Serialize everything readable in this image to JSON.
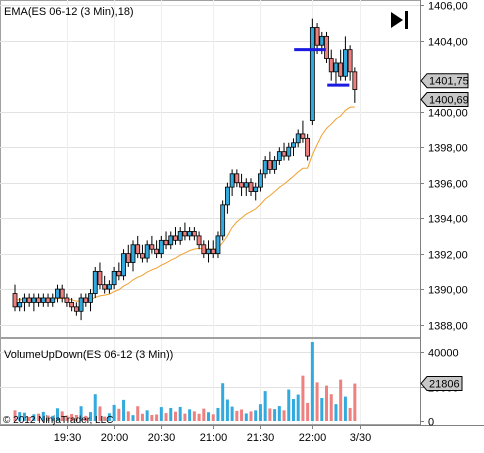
{
  "chart_data": [
    {
      "type": "candlestick",
      "title": "EMA(ES 06-12 (3 Min),18)",
      "ylim": [
        1387.3,
        1406.3
      ],
      "ticks": [
        {
          "value": 1406,
          "label": "1406,00"
        },
        {
          "value": 1404,
          "label": "1404,00"
        },
        {
          "value": 1400,
          "label": "1400,00"
        },
        {
          "value": 1398,
          "label": "1398,00"
        },
        {
          "value": 1396,
          "label": "1396,00"
        },
        {
          "value": 1394,
          "label": "1394,00"
        },
        {
          "value": 1392,
          "label": "1392,00"
        },
        {
          "value": 1390,
          "label": "1390,00"
        },
        {
          "value": 1388,
          "label": "1388,00"
        }
      ],
      "price_markers": [
        {
          "value": 1401.75,
          "label": "1401,75"
        },
        {
          "value": 1400.69,
          "label": "1400,69"
        }
      ],
      "up_color": "#33aadd",
      "down_color": "#ee8080",
      "ema_color": "#f0a030",
      "candles": [
        [
          1389.75,
          1390.25,
          1388.75,
          1389.0
        ],
        [
          1389.0,
          1389.5,
          1388.75,
          1389.25
        ],
        [
          1389.25,
          1389.75,
          1388.75,
          1389.5
        ],
        [
          1389.5,
          1389.75,
          1389.0,
          1389.25
        ],
        [
          1389.25,
          1389.75,
          1388.75,
          1389.5
        ],
        [
          1389.5,
          1389.75,
          1389.0,
          1389.25
        ],
        [
          1389.25,
          1389.75,
          1389.0,
          1389.5
        ],
        [
          1389.5,
          1389.75,
          1389.0,
          1389.25
        ],
        [
          1389.25,
          1389.75,
          1389.0,
          1389.5
        ],
        [
          1389.5,
          1390.25,
          1389.25,
          1390.0
        ],
        [
          1390.0,
          1390.25,
          1389.25,
          1389.5
        ],
        [
          1389.5,
          1389.75,
          1389.0,
          1389.25
        ],
        [
          1389.25,
          1389.5,
          1388.75,
          1389.0
        ],
        [
          1389.0,
          1389.25,
          1388.5,
          1388.75
        ],
        [
          1388.75,
          1389.75,
          1388.25,
          1389.5
        ],
        [
          1389.5,
          1389.75,
          1389.0,
          1389.25
        ],
        [
          1389.25,
          1390.0,
          1388.75,
          1389.75
        ],
        [
          1389.75,
          1391.25,
          1389.5,
          1391.0
        ],
        [
          1391.0,
          1391.5,
          1390.0,
          1390.25
        ],
        [
          1390.25,
          1390.75,
          1389.75,
          1390.0
        ],
        [
          1390.0,
          1390.5,
          1389.75,
          1390.25
        ],
        [
          1390.25,
          1391.25,
          1390.0,
          1391.0
        ],
        [
          1391.0,
          1391.5,
          1390.5,
          1390.75
        ],
        [
          1390.75,
          1392.25,
          1390.5,
          1392.0
        ],
        [
          1392.0,
          1392.5,
          1391.25,
          1391.5
        ],
        [
          1391.5,
          1392.75,
          1391.0,
          1392.5
        ],
        [
          1392.5,
          1393.0,
          1391.75,
          1392.0
        ],
        [
          1392.0,
          1392.5,
          1391.5,
          1391.75
        ],
        [
          1391.75,
          1392.75,
          1391.5,
          1392.5
        ],
        [
          1392.5,
          1393.0,
          1392.0,
          1392.25
        ],
        [
          1392.25,
          1392.75,
          1391.75,
          1392.0
        ],
        [
          1392.0,
          1393.0,
          1391.75,
          1392.75
        ],
        [
          1392.75,
          1393.25,
          1392.25,
          1392.5
        ],
        [
          1392.5,
          1393.25,
          1392.25,
          1393.0
        ],
        [
          1393.0,
          1393.5,
          1392.5,
          1392.75
        ],
        [
          1392.75,
          1393.5,
          1392.5,
          1393.25
        ],
        [
          1393.25,
          1393.75,
          1392.75,
          1393.0
        ],
        [
          1393.0,
          1393.5,
          1392.75,
          1393.25
        ],
        [
          1393.25,
          1393.5,
          1392.75,
          1393.0
        ],
        [
          1393.0,
          1393.25,
          1392.25,
          1392.5
        ],
        [
          1392.5,
          1392.75,
          1391.75,
          1392.0
        ],
        [
          1392.0,
          1392.75,
          1391.5,
          1392.25
        ],
        [
          1392.25,
          1392.75,
          1391.75,
          1392.0
        ],
        [
          1392.0,
          1393.25,
          1391.75,
          1393.0
        ],
        [
          1393.0,
          1395.0,
          1392.75,
          1394.75
        ],
        [
          1394.75,
          1396.0,
          1394.25,
          1395.75
        ],
        [
          1395.75,
          1396.75,
          1395.25,
          1396.5
        ],
        [
          1396.5,
          1396.75,
          1395.75,
          1396.0
        ],
        [
          1396.0,
          1396.5,
          1395.25,
          1395.75
        ],
        [
          1395.75,
          1396.25,
          1395.25,
          1396.0
        ],
        [
          1396.0,
          1396.25,
          1395.25,
          1395.5
        ],
        [
          1395.5,
          1396.0,
          1395.0,
          1395.75
        ],
        [
          1395.75,
          1396.75,
          1395.5,
          1396.5
        ],
        [
          1396.5,
          1397.5,
          1396.25,
          1397.25
        ],
        [
          1397.25,
          1397.75,
          1396.5,
          1396.75
        ],
        [
          1396.75,
          1397.5,
          1396.5,
          1397.25
        ],
        [
          1397.25,
          1398.0,
          1397.0,
          1397.75
        ],
        [
          1397.75,
          1398.25,
          1397.25,
          1397.5
        ],
        [
          1397.5,
          1398.25,
          1397.25,
          1398.0
        ],
        [
          1398.0,
          1398.5,
          1397.5,
          1398.25
        ],
        [
          1398.25,
          1399.0,
          1398.0,
          1398.75
        ],
        [
          1398.75,
          1399.5,
          1398.25,
          1398.5
        ],
        [
          1398.5,
          1398.75,
          1397.25,
          1397.5
        ],
        [
          1399.5,
          1405.25,
          1399.25,
          1404.75
        ],
        [
          1404.75,
          1405.0,
          1403.25,
          1403.75
        ],
        [
          1403.75,
          1404.5,
          1403.25,
          1404.25
        ],
        [
          1404.25,
          1404.5,
          1402.75,
          1403.0
        ],
        [
          1403.0,
          1403.5,
          1401.75,
          1402.25
        ],
        [
          1402.25,
          1403.0,
          1401.5,
          1402.75
        ],
        [
          1402.75,
          1403.5,
          1401.75,
          1402.0
        ],
        [
          1402.0,
          1404.25,
          1401.75,
          1403.5
        ],
        [
          1403.5,
          1403.75,
          1401.75,
          1402.25
        ],
        [
          1402.25,
          1402.5,
          1400.5,
          1401.25
        ]
      ],
      "ema": [
        1389.4,
        1389.4,
        1389.4,
        1389.4,
        1389.4,
        1389.4,
        1389.4,
        1389.4,
        1389.41,
        1389.47,
        1389.47,
        1389.45,
        1389.4,
        1389.32,
        1389.34,
        1389.33,
        1389.37,
        1389.53,
        1389.62,
        1389.66,
        1389.72,
        1389.86,
        1389.96,
        1390.17,
        1390.31,
        1390.52,
        1390.67,
        1390.78,
        1390.96,
        1391.09,
        1391.19,
        1391.35,
        1391.47,
        1391.63,
        1391.75,
        1391.92,
        1392.04,
        1392.17,
        1392.26,
        1392.29,
        1392.26,
        1392.26,
        1392.24,
        1392.33,
        1392.63,
        1393.0,
        1393.48,
        1393.79,
        1394.01,
        1394.23,
        1394.37,
        1394.52,
        1394.77,
        1395.08,
        1395.27,
        1395.5,
        1395.73,
        1395.92,
        1396.14,
        1396.36,
        1396.61,
        1396.81,
        1396.82,
        1397.58,
        1398.15,
        1398.69,
        1399.06,
        1399.3,
        1399.59,
        1399.76,
        1400.08,
        1400.25,
        1400.27
      ],
      "annotations": [
        {
          "kind": "line",
          "from": 60,
          "to": 65,
          "value": 1403.5,
          "color": "#1a1ae0"
        },
        {
          "kind": "line",
          "from": 67,
          "to": 70,
          "value": 1401.5,
          "color": "#1a1ae0"
        },
        {
          "kind": "play-marker",
          "color": "#000000"
        }
      ]
    },
    {
      "type": "bar",
      "title": "VolumeUpDown(ES 06-12 (3 Min))",
      "ylim": [
        0,
        46000
      ],
      "ticks": [
        {
          "value": 40000,
          "label": "40000"
        },
        {
          "value": 20000,
          "label": "20000"
        },
        {
          "value": 0,
          "label": "0"
        }
      ],
      "last_value_label": "21806",
      "volumes": [
        6200,
        5200,
        4800,
        2400,
        3900,
        4300,
        5300,
        3200,
        3000,
        7400,
        5600,
        3200,
        4100,
        3500,
        8600,
        3000,
        5200,
        15600,
        8500,
        2600,
        4500,
        9400,
        7100,
        12300,
        5600,
        3400,
        8600,
        4200,
        6200,
        3500,
        3800,
        8100,
        4600,
        7600,
        5400,
        8200,
        4300,
        6800,
        5600,
        4200,
        7200,
        5100,
        3900,
        7600,
        22000,
        12500,
        8400,
        5900,
        6700,
        4400,
        5600,
        6200,
        9800,
        17400,
        7300,
        6900,
        8700,
        6200,
        18300,
        12800,
        15400,
        26400,
        10500,
        46000,
        22500,
        13400,
        20600,
        15600,
        9800,
        24100,
        14200,
        7600,
        21806
      ]
    }
  ],
  "xaxis": {
    "ticks": [
      {
        "index": 11,
        "label": "19:30"
      },
      {
        "index": 21,
        "label": "20:00"
      },
      {
        "index": 31,
        "label": "20:30"
      },
      {
        "index": 42,
        "label": "21:00"
      },
      {
        "index": 52,
        "label": "21:30"
      },
      {
        "index": 63,
        "label": "22:00"
      },
      {
        "index": 73,
        "label": "3/30"
      }
    ]
  },
  "copyright": "© 2012 NinjaTrader, LLC"
}
